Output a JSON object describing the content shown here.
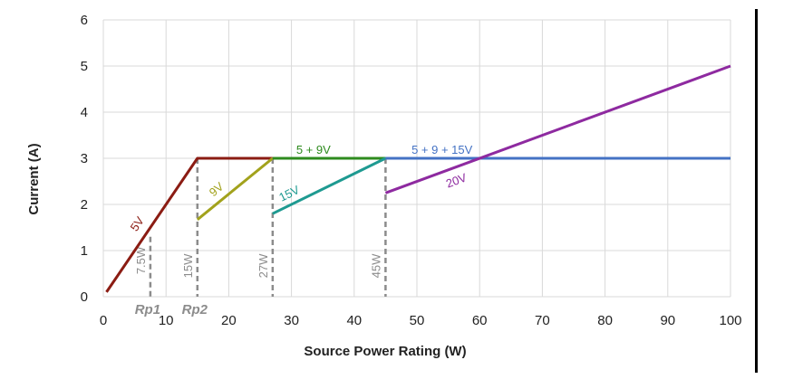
{
  "chart_data": {
    "type": "line",
    "title": "",
    "xlabel": "Source Power Rating (W)",
    "ylabel": "Current (A)",
    "xlim": [
      0,
      100
    ],
    "ylim": [
      0,
      6
    ],
    "grid": true,
    "x_ticks": [
      "0",
      "10",
      "20",
      "30",
      "40",
      "50",
      "60",
      "70",
      "80",
      "90",
      "100"
    ],
    "y_ticks": [
      "0",
      "1",
      "2",
      "3",
      "4",
      "5",
      "6"
    ],
    "series": [
      {
        "label": "5V",
        "color": "#8b1c13",
        "points": [
          [
            0.5,
            0.1
          ],
          [
            15,
            3
          ],
          [
            27,
            3
          ]
        ]
      },
      {
        "label": "9V",
        "color": "#a2a21c",
        "points": [
          [
            15,
            1.67
          ],
          [
            27,
            3
          ]
        ]
      },
      {
        "label": "5 + 9V",
        "color": "#2e8b1e",
        "points": [
          [
            27,
            3
          ],
          [
            45,
            3
          ]
        ]
      },
      {
        "label": "15V",
        "color": "#1e9a91",
        "points": [
          [
            27,
            1.8
          ],
          [
            45,
            3
          ]
        ]
      },
      {
        "label": "5 + 9 + 15V",
        "color": "#4472c4",
        "points": [
          [
            45,
            3
          ],
          [
            100,
            3
          ]
        ]
      },
      {
        "label": "20V",
        "color": "#8e2aa0",
        "points": [
          [
            45,
            2.25
          ],
          [
            100,
            5
          ]
        ]
      }
    ],
    "markers": [
      {
        "label": "7.5W",
        "x": 7.5,
        "y_top": 1.3
      },
      {
        "label": "15W",
        "x": 15,
        "y_top": 3
      },
      {
        "label": "27W",
        "x": 27,
        "y_top": 3
      },
      {
        "label": "45W",
        "x": 45,
        "y_top": 3
      }
    ],
    "rp_labels": [
      {
        "label": "Rp1",
        "x": 7.5
      },
      {
        "label": "Rp2",
        "x": 15
      }
    ],
    "colors": {
      "grid": "#d9d9d9",
      "marker": "#8c8c8c",
      "text": "#222222"
    }
  }
}
